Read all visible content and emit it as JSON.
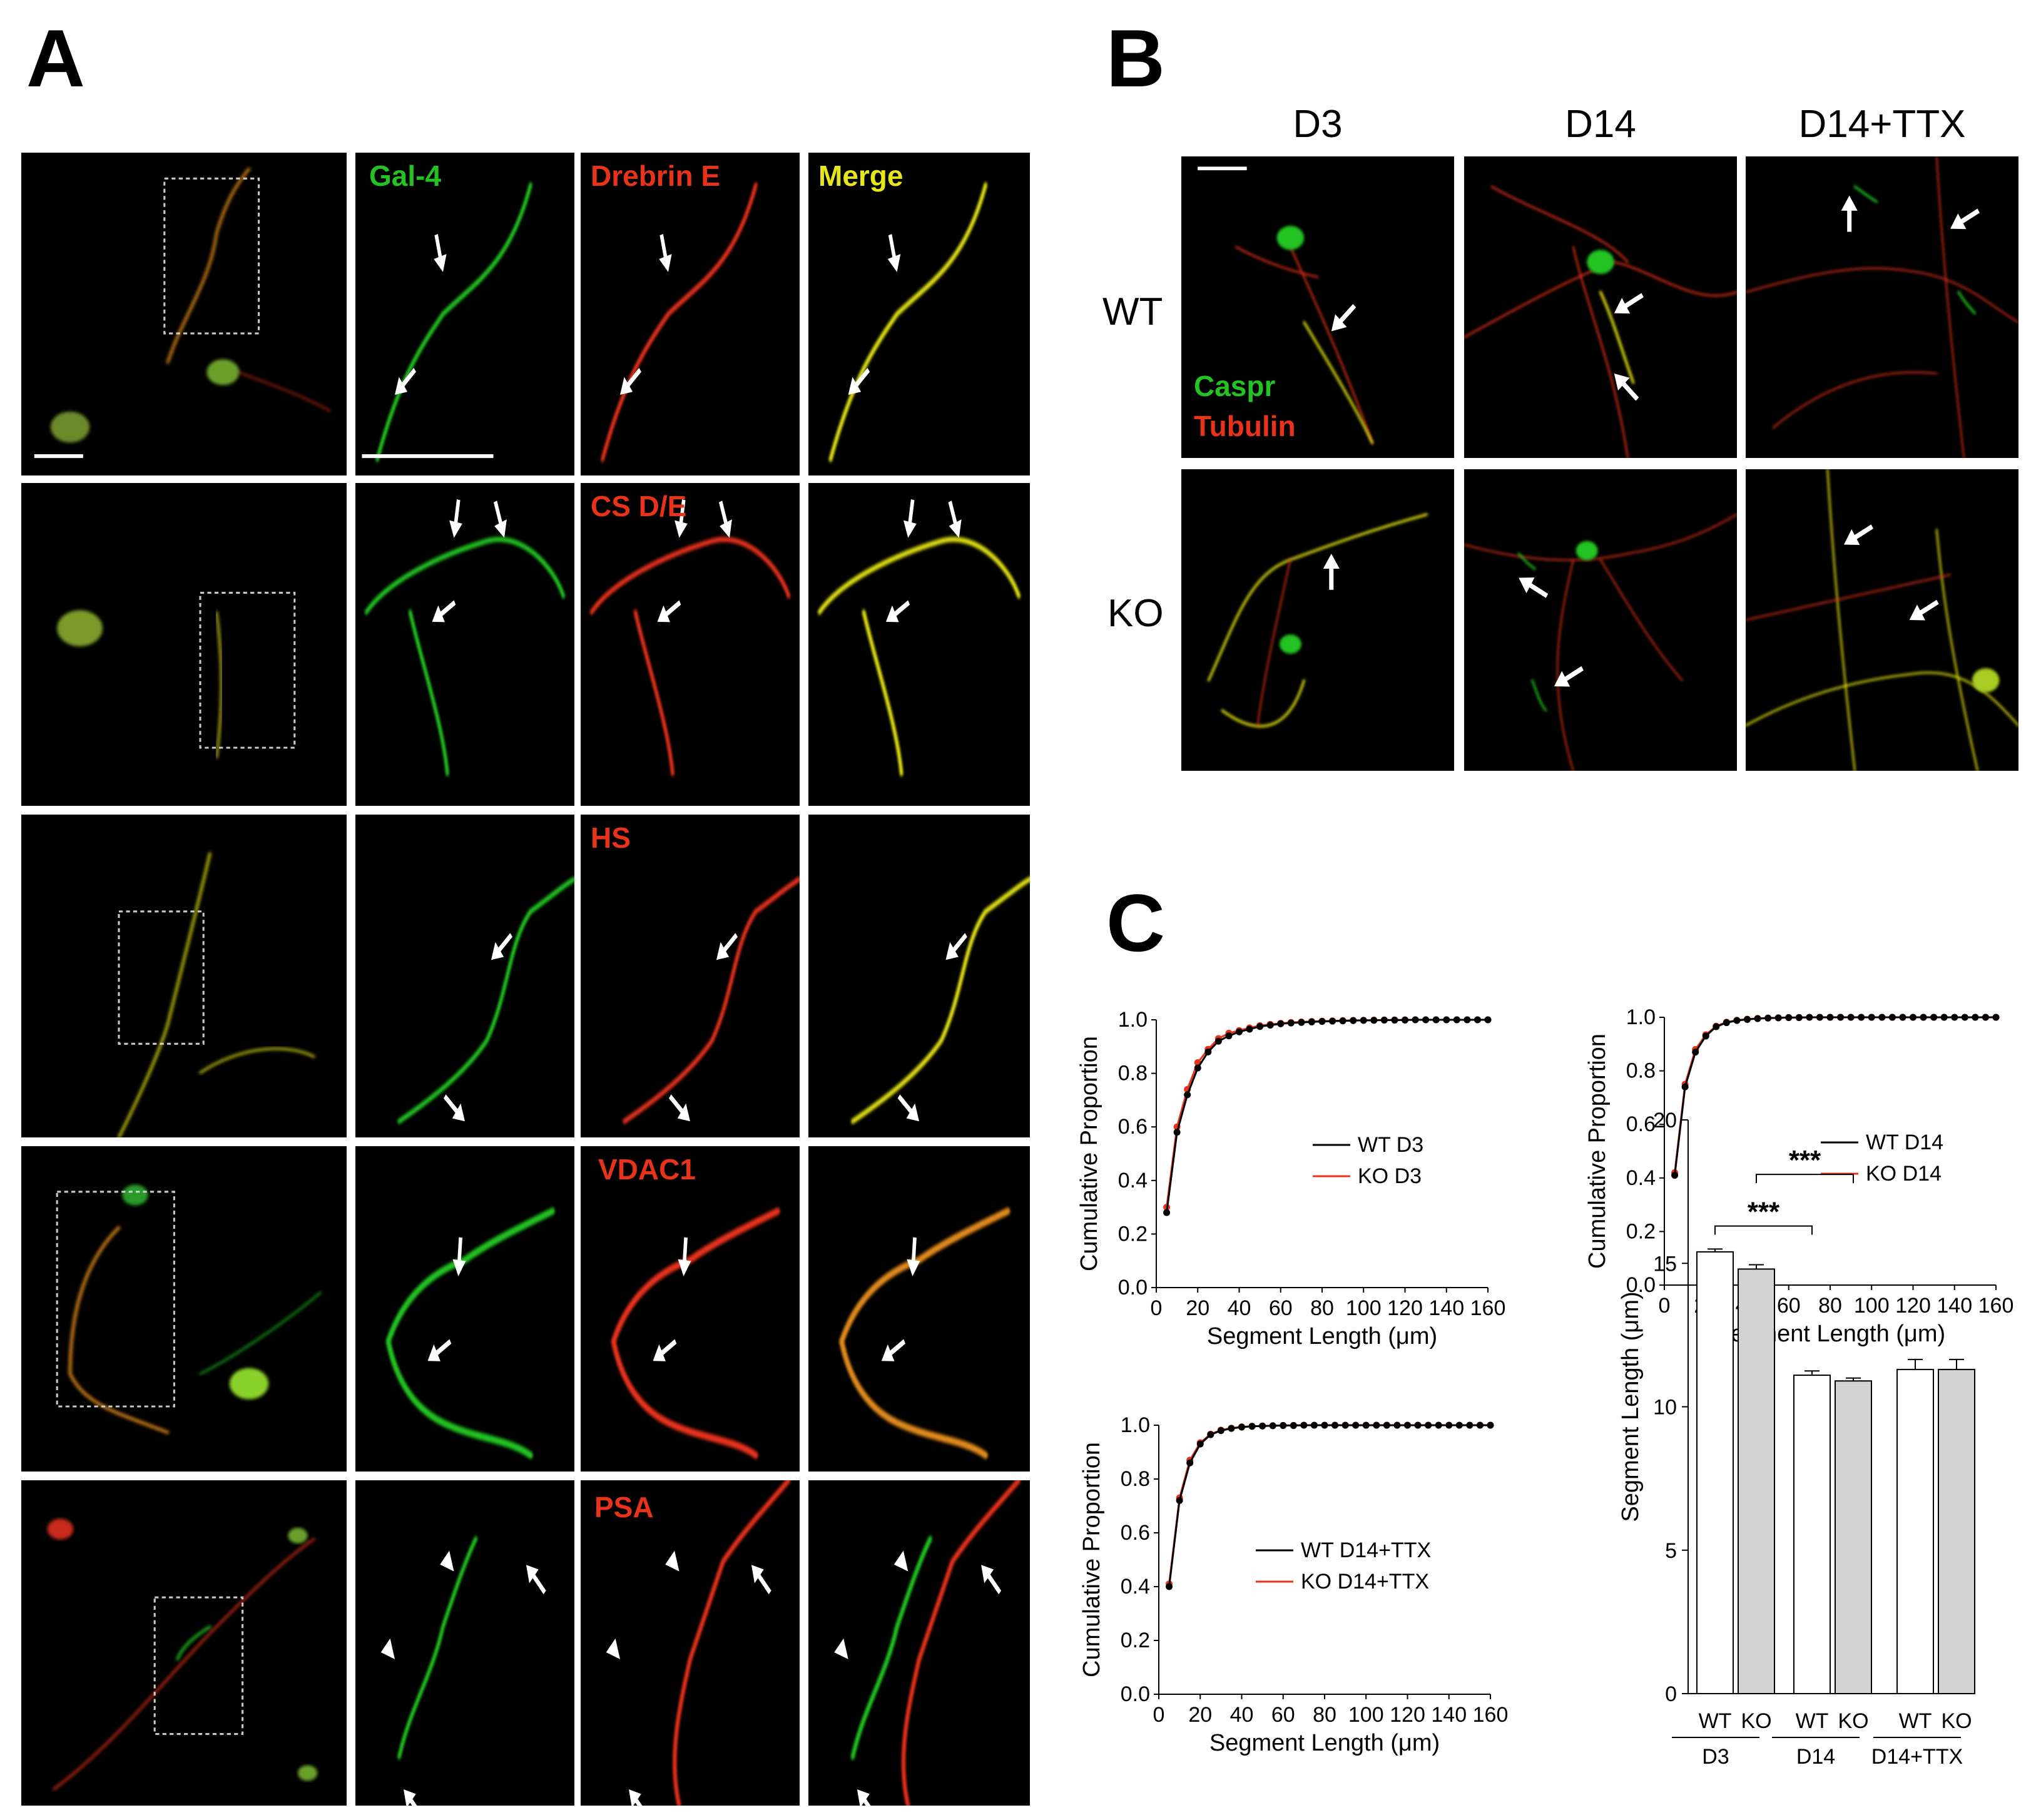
{
  "panels": {
    "A": "A",
    "B": "B",
    "C": "C"
  },
  "colors": {
    "green": "#22c322",
    "red": "#e8321a",
    "yellow": "#e6e619",
    "orange": "#e08a1a"
  },
  "panel_a": {
    "labels": [
      "Gal-4",
      "Drebrin E",
      "Merge",
      "CS D/E",
      "HS",
      "VDAC1",
      "PSA"
    ]
  },
  "panel_b": {
    "columns": [
      "D3",
      "D14",
      "D14+TTX"
    ],
    "rows": [
      "WT",
      "KO"
    ],
    "legend_green": "Caspr",
    "legend_red": "Tubulin"
  },
  "chart_data": [
    {
      "type": "line",
      "xlabel": "Segment Length (μm)",
      "ylabel": "Cumulative Proportion",
      "xlim": [
        0,
        160
      ],
      "ylim": [
        0,
        1.0
      ],
      "xticks": [
        "0",
        "20",
        "40",
        "60",
        "80",
        "100",
        "120",
        "140",
        "160"
      ],
      "yticks": [
        "0.0",
        "0.2",
        "0.4",
        "0.6",
        "0.8",
        "1.0"
      ],
      "x": [
        5,
        10,
        15,
        20,
        25,
        30,
        35,
        40,
        45,
        50,
        55,
        60,
        65,
        70,
        75,
        80,
        85,
        90,
        95,
        100,
        105,
        110,
        115,
        120,
        125,
        130,
        135,
        140,
        145,
        150,
        155,
        160
      ],
      "series": [
        {
          "name": "WT D3",
          "color": "#000000",
          "values": [
            0.28,
            0.58,
            0.72,
            0.82,
            0.88,
            0.92,
            0.94,
            0.955,
            0.965,
            0.975,
            0.98,
            0.985,
            0.988,
            0.99,
            0.992,
            0.994,
            0.995,
            0.996,
            0.997,
            0.998,
            0.998,
            0.999,
            0.999,
            0.999,
            1.0,
            1.0,
            1.0,
            1.0,
            1.0,
            1.0,
            1.0,
            1.0
          ]
        },
        {
          "name": "KO D3",
          "color": "#e8321a",
          "values": [
            0.3,
            0.6,
            0.74,
            0.84,
            0.89,
            0.93,
            0.95,
            0.96,
            0.97,
            0.978,
            0.983,
            0.987,
            0.99,
            0.992,
            0.994,
            0.995,
            0.996,
            0.997,
            0.998,
            0.998,
            0.999,
            0.999,
            0.999,
            1.0,
            1.0,
            1.0,
            1.0,
            1.0,
            1.0,
            1.0,
            1.0,
            1.0
          ]
        }
      ]
    },
    {
      "type": "line",
      "xlabel": "Segment Length (μm)",
      "ylabel": "Cumulative Proportion",
      "xlim": [
        0,
        160
      ],
      "ylim": [
        0,
        1.0
      ],
      "xticks": [
        "0",
        "20",
        "40",
        "60",
        "80",
        "100",
        "120",
        "140",
        "160"
      ],
      "yticks": [
        "0.0",
        "0.2",
        "0.4",
        "0.6",
        "0.8",
        "1.0"
      ],
      "x": [
        5,
        10,
        15,
        20,
        25,
        30,
        35,
        40,
        45,
        50,
        55,
        60,
        65,
        70,
        75,
        80,
        85,
        90,
        95,
        100,
        105,
        110,
        115,
        120,
        125,
        130,
        135,
        140,
        145,
        150,
        155,
        160
      ],
      "series": [
        {
          "name": "WT D14",
          "color": "#000000",
          "values": [
            0.41,
            0.74,
            0.87,
            0.93,
            0.965,
            0.98,
            0.988,
            0.992,
            0.995,
            0.997,
            0.998,
            0.999,
            0.999,
            1.0,
            1.0,
            1.0,
            1.0,
            1.0,
            1.0,
            1.0,
            1.0,
            1.0,
            1.0,
            1.0,
            1.0,
            1.0,
            1.0,
            1.0,
            1.0,
            1.0,
            1.0,
            1.0
          ]
        },
        {
          "name": "KO D14",
          "color": "#e8321a",
          "values": [
            0.42,
            0.75,
            0.88,
            0.935,
            0.967,
            0.982,
            0.989,
            0.993,
            0.996,
            0.997,
            0.998,
            0.999,
            0.999,
            1.0,
            1.0,
            1.0,
            1.0,
            1.0,
            1.0,
            1.0,
            1.0,
            1.0,
            1.0,
            1.0,
            1.0,
            1.0,
            1.0,
            1.0,
            1.0,
            1.0,
            1.0,
            1.0
          ]
        }
      ]
    },
    {
      "type": "line",
      "xlabel": "Segment Length (μm)",
      "ylabel": "Cumulative Proportion",
      "xlim": [
        0,
        160
      ],
      "ylim": [
        0,
        1.0
      ],
      "xticks": [
        "0",
        "20",
        "40",
        "60",
        "80",
        "100",
        "120",
        "140",
        "160"
      ],
      "yticks": [
        "0.0",
        "0.2",
        "0.4",
        "0.6",
        "0.8",
        "1.0"
      ],
      "x": [
        5,
        10,
        15,
        20,
        25,
        30,
        35,
        40,
        45,
        50,
        55,
        60,
        65,
        70,
        75,
        80,
        85,
        90,
        95,
        100,
        105,
        110,
        115,
        120,
        125,
        130,
        135,
        140,
        145,
        150,
        155,
        160
      ],
      "series": [
        {
          "name": "WT D14+TTX",
          "color": "#000000",
          "values": [
            0.4,
            0.72,
            0.86,
            0.93,
            0.965,
            0.98,
            0.988,
            0.993,
            0.996,
            0.997,
            0.998,
            0.999,
            0.999,
            1.0,
            1.0,
            1.0,
            1.0,
            1.0,
            1.0,
            1.0,
            1.0,
            1.0,
            1.0,
            1.0,
            1.0,
            1.0,
            1.0,
            1.0,
            1.0,
            1.0,
            1.0,
            1.0
          ]
        },
        {
          "name": "KO D14+TTX",
          "color": "#e8321a",
          "values": [
            0.41,
            0.73,
            0.87,
            0.935,
            0.967,
            0.982,
            0.989,
            0.994,
            0.996,
            0.997,
            0.998,
            0.999,
            0.999,
            1.0,
            1.0,
            1.0,
            1.0,
            1.0,
            1.0,
            1.0,
            1.0,
            1.0,
            1.0,
            1.0,
            1.0,
            1.0,
            1.0,
            1.0,
            1.0,
            1.0,
            1.0,
            1.0
          ]
        }
      ]
    },
    {
      "type": "bar",
      "ylabel": "Segment Length (μm)",
      "ylim": [
        0,
        20
      ],
      "yticks": [
        "0",
        "5",
        "10",
        "15",
        "20"
      ],
      "categories": [
        "WT",
        "KO",
        "WT",
        "KO",
        "WT",
        "KO"
      ],
      "groups": [
        "D3",
        "D14",
        "D14+TTX"
      ],
      "values": [
        15.4,
        14.8,
        11.1,
        10.9,
        11.3,
        11.3
      ],
      "errors": [
        0.1,
        0.15,
        0.15,
        0.1,
        0.35,
        0.35
      ],
      "fills": [
        "#ffffff",
        "#d3d3d3",
        "#ffffff",
        "#d3d3d3",
        "#ffffff",
        "#d3d3d3"
      ],
      "significance": [
        "***",
        "***"
      ]
    }
  ]
}
